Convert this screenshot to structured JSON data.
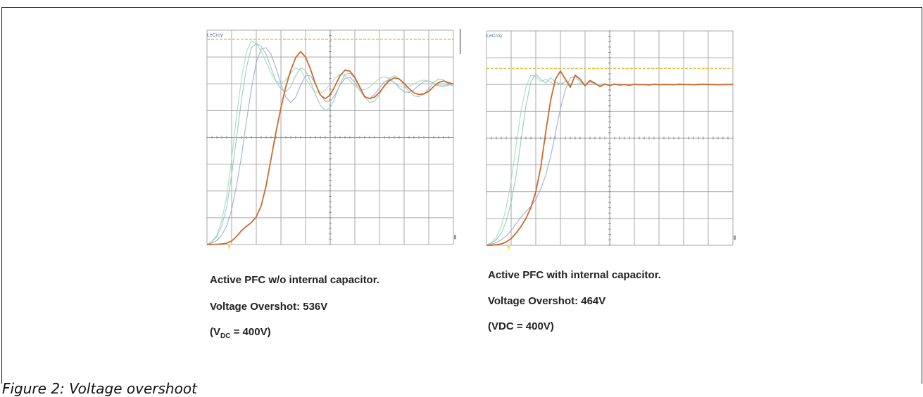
{
  "figure": {
    "caption": "Figure 2: Voltage overshoot"
  },
  "colors": {
    "grid": "#a9a9a9",
    "grid_minor": "#8c8c8c",
    "limit_line": "#e8c24a",
    "trace_main": "#cc6a2a",
    "trace_2": "#8fc8c0",
    "trace_3": "#a8d8b8",
    "trace_4": "#9aa6d4",
    "trigger": "#f2e040",
    "brand": "#5577aa"
  },
  "chart_data": [
    {
      "type": "line",
      "brand_label": "LeCroy",
      "grid_divisions": [
        10,
        8
      ],
      "x": [
        0,
        0.2,
        0.4,
        0.6,
        0.8,
        1.0,
        1.2,
        1.4,
        1.6,
        1.8,
        2.0,
        2.2,
        2.4,
        2.6,
        2.8,
        3.0,
        3.2,
        3.4,
        3.6,
        3.8,
        4.0,
        4.2,
        4.4,
        4.6,
        4.8,
        5.0,
        5.2,
        5.4,
        5.6,
        5.8,
        6.0,
        6.2,
        6.4,
        6.6,
        6.8,
        7.0,
        7.2,
        7.4,
        7.6,
        7.8,
        8.0,
        8.2,
        8.4,
        8.6,
        8.8,
        9.0,
        9.2,
        9.4,
        9.6,
        9.8,
        10.0
      ],
      "limit_level": 7.66,
      "series": [
        {
          "color_key": "trace_main",
          "values": [
            0.0,
            0.0,
            0.01,
            0.02,
            0.05,
            0.13,
            0.3,
            0.52,
            0.68,
            0.82,
            1.03,
            1.45,
            2.2,
            3.2,
            4.2,
            5.1,
            5.9,
            6.5,
            6.98,
            7.2,
            7.0,
            6.55,
            6.0,
            5.58,
            5.45,
            5.58,
            5.93,
            6.3,
            6.51,
            6.47,
            6.24,
            5.88,
            5.52,
            5.45,
            5.5,
            5.68,
            5.92,
            6.12,
            6.22,
            6.18,
            6.02,
            5.82,
            5.66,
            5.6,
            5.62,
            5.72,
            5.9,
            6.05,
            6.1,
            6.04,
            6.0
          ]
        },
        {
          "color_key": "trace_2",
          "values": [
            0.0,
            0.1,
            0.3,
            0.7,
            1.4,
            2.6,
            4.0,
            5.4,
            6.6,
            7.35,
            7.5,
            7.4,
            7.1,
            6.6,
            6.1,
            5.8,
            5.7,
            5.9,
            6.3,
            6.6,
            6.5,
            6.1,
            5.6,
            5.2,
            5.0,
            5.1,
            5.5,
            6.0,
            6.35,
            6.4,
            6.2,
            5.85,
            5.5,
            5.3,
            5.35,
            5.6,
            5.95,
            6.2,
            6.3,
            6.2,
            5.95,
            5.7,
            5.55,
            5.52,
            5.62,
            5.82,
            6.05,
            6.18,
            6.14,
            6.0,
            5.92
          ]
        },
        {
          "color_key": "trace_3",
          "values": [
            0.0,
            0.12,
            0.35,
            0.9,
            1.8,
            3.2,
            4.8,
            6.2,
            7.2,
            7.6,
            7.5,
            7.2,
            6.8,
            6.4,
            6.1,
            6.0,
            6.15,
            6.4,
            6.6,
            6.5,
            6.2,
            5.9,
            5.7,
            5.65,
            5.75,
            5.98,
            6.22,
            6.36,
            6.3,
            6.12,
            5.92,
            5.8,
            5.78,
            5.88,
            6.05,
            6.2,
            6.26,
            6.2,
            6.05,
            5.92,
            5.86,
            5.9,
            6.0,
            6.1,
            6.14,
            6.1,
            6.02,
            5.96,
            5.95,
            5.98,
            6.0
          ]
        },
        {
          "color_key": "trace_4",
          "values": [
            0.0,
            0.05,
            0.15,
            0.35,
            0.7,
            1.3,
            2.2,
            3.3,
            4.6,
            5.8,
            6.8,
            7.3,
            7.35,
            7.1,
            6.6,
            6.0,
            5.5,
            5.3,
            5.5,
            5.95,
            6.3,
            6.3,
            6.0,
            5.6,
            5.35,
            5.35,
            5.6,
            5.95,
            6.2,
            6.25,
            6.05,
            5.75,
            5.5,
            5.45,
            5.6,
            5.85,
            6.08,
            6.15,
            6.05,
            5.85,
            5.7,
            5.68,
            5.78,
            5.95,
            6.08,
            6.1,
            6.02,
            5.92,
            5.9,
            5.95,
            6.0
          ]
        }
      ]
    },
    {
      "type": "line",
      "brand_label": "LeCroy",
      "grid_divisions": [
        10,
        8
      ],
      "x": [
        0,
        0.2,
        0.4,
        0.6,
        0.8,
        1.0,
        1.2,
        1.4,
        1.6,
        1.8,
        2.0,
        2.2,
        2.4,
        2.6,
        2.8,
        3.0,
        3.2,
        3.4,
        3.6,
        3.8,
        4.0,
        4.2,
        4.4,
        4.6,
        4.8,
        5.0,
        5.2,
        5.4,
        5.6,
        5.8,
        6.0,
        6.2,
        6.4,
        6.6,
        6.8,
        7.0,
        7.2,
        7.4,
        7.6,
        7.8,
        8.0,
        8.2,
        8.4,
        8.6,
        8.8,
        9.0,
        9.2,
        9.4,
        9.6,
        9.8,
        10.0
      ],
      "limit_level": 6.6,
      "series": [
        {
          "color_key": "trace_main",
          "values": [
            0.0,
            0.0,
            0.02,
            0.05,
            0.12,
            0.25,
            0.45,
            0.7,
            1.0,
            1.4,
            2.0,
            2.9,
            4.2,
            5.4,
            6.2,
            6.5,
            6.2,
            5.9,
            6.35,
            6.2,
            5.95,
            6.15,
            6.05,
            5.92,
            6.02,
            5.96,
            6.02,
            5.98,
            6.0,
            5.97,
            6.01,
            5.99,
            6.0,
            5.98,
            6.01,
            5.99,
            6.0,
            6.0,
            5.99,
            6.01,
            6.0,
            6.0,
            5.99,
            6.0,
            6.01,
            6.0,
            6.0,
            5.99,
            6.0,
            6.0,
            6.0
          ]
        },
        {
          "color_key": "trace_2",
          "values": [
            0.0,
            0.08,
            0.2,
            0.45,
            0.9,
            1.6,
            2.6,
            3.9,
            5.2,
            6.1,
            6.4,
            6.2,
            6.05,
            6.25,
            6.1,
            6.0,
            6.12,
            6.02,
            6.0,
            6.04,
            5.99,
            6.02,
            6.0,
            5.99,
            6.01,
            6.0,
            6.0,
            6.01,
            5.99,
            6.0,
            6.0,
            6.01,
            6.0,
            5.99,
            6.0,
            6.0,
            6.01,
            6.0,
            6.0,
            5.99,
            6.0,
            6.0,
            6.0,
            6.01,
            6.0,
            6.0,
            5.99,
            6.0,
            6.0,
            6.0,
            6.0
          ]
        },
        {
          "color_key": "trace_3",
          "values": [
            0.0,
            0.1,
            0.3,
            0.7,
            1.4,
            2.4,
            3.7,
            5.0,
            5.9,
            6.35,
            6.3,
            6.1,
            6.2,
            6.08,
            6.0,
            6.06,
            6.01,
            6.0,
            6.02,
            5.99,
            6.0,
            6.01,
            6.0,
            6.0,
            5.99,
            6.0,
            6.01,
            6.0,
            6.0,
            6.0,
            5.99,
            6.0,
            6.0,
            6.01,
            6.0,
            6.0,
            6.0,
            5.99,
            6.0,
            6.0,
            6.0,
            6.01,
            6.0,
            6.0,
            6.0,
            5.99,
            6.0,
            6.0,
            6.0,
            6.0,
            6.0
          ]
        },
        {
          "color_key": "trace_4",
          "values": [
            0.0,
            0.04,
            0.1,
            0.2,
            0.35,
            0.55,
            0.8,
            1.05,
            1.25,
            1.45,
            1.7,
            2.1,
            2.6,
            3.3,
            4.2,
            5.1,
            5.8,
            6.25,
            6.3,
            6.1,
            6.0,
            6.1,
            6.03,
            5.98,
            6.02,
            6.0,
            5.99,
            6.01,
            6.0,
            6.0,
            6.0,
            5.99,
            6.0,
            6.0,
            6.01,
            6.0,
            6.0,
            6.0,
            5.99,
            6.0,
            6.0,
            6.0,
            6.0,
            6.01,
            6.0,
            6.0,
            6.0,
            5.99,
            6.0,
            6.0,
            6.0
          ]
        }
      ]
    }
  ],
  "notes": {
    "left": {
      "line1": "Active PFC w/o internal capacitor.",
      "line2": "Voltage Overshot: 536V",
      "line3_prefix": "(V",
      "line3_sub": "DC",
      "line3_suffix": " = 400V)"
    },
    "right": {
      "line1": "Active PFC with internal capacitor.",
      "line2": "Voltage Overshot: 464V",
      "line3": "(VDC = 400V)"
    }
  }
}
